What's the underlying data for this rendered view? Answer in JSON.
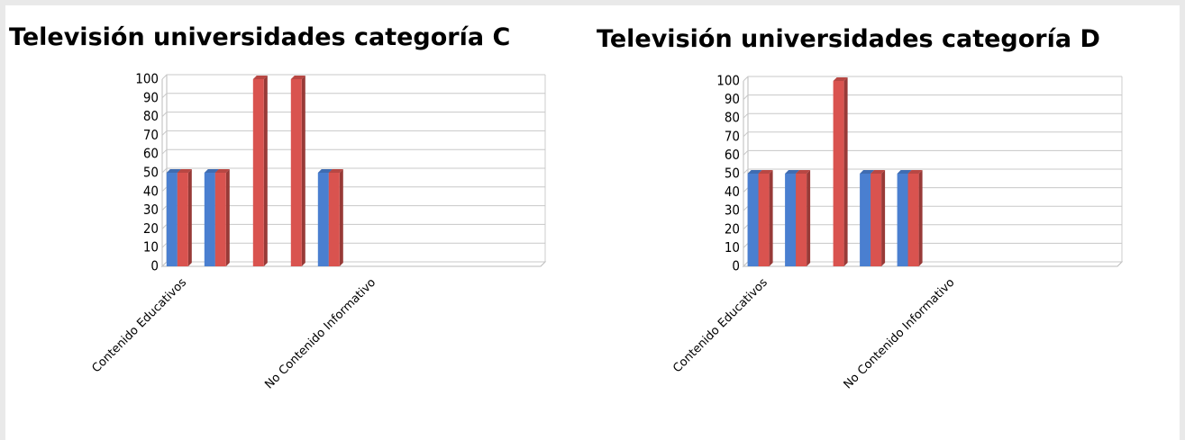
{
  "chart_data": [
    {
      "type": "bar",
      "title": "Televisión universidades categoría C",
      "categories": [
        "Contenido Educativos",
        null,
        null,
        null,
        null,
        "No Contenido Informativo",
        null,
        null,
        null,
        null
      ],
      "series": [
        {
          "color": "#4a7fd0",
          "values": [
            50,
            50,
            null,
            null,
            50,
            null,
            null,
            null,
            null,
            null
          ]
        },
        {
          "color": "#d9534f",
          "values": [
            50,
            50,
            100,
            100,
            50,
            null,
            null,
            null,
            null,
            null
          ]
        }
      ],
      "ylim": [
        0,
        100
      ],
      "yticks": [
        0,
        10,
        20,
        30,
        40,
        50,
        60,
        70,
        80,
        90,
        100
      ],
      "grid": true
    },
    {
      "type": "bar",
      "title": "Televisión universidades categoría  D",
      "categories": [
        "Contenido Educativos",
        null,
        null,
        null,
        null,
        "No Contenido Informativo",
        null,
        null,
        null,
        null
      ],
      "series": [
        {
          "color": "#4a7fd0",
          "values": [
            50,
            50,
            null,
            50,
            50,
            null,
            null,
            null,
            null,
            null
          ]
        },
        {
          "color": "#d9534f",
          "values": [
            50,
            50,
            100,
            50,
            50,
            null,
            null,
            null,
            null,
            null
          ]
        }
      ],
      "ylim": [
        0,
        100
      ],
      "yticks": [
        0,
        10,
        20,
        30,
        40,
        50,
        60,
        70,
        80,
        90,
        100
      ],
      "grid": true
    }
  ]
}
